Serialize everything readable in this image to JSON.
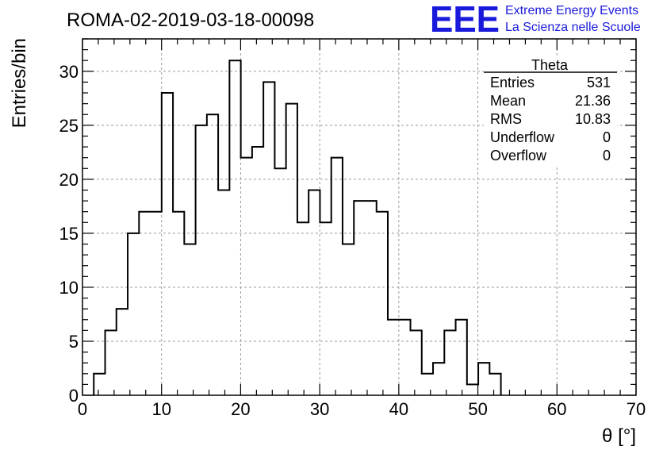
{
  "chart_data": {
    "type": "histogram",
    "title": "ROMA-02-2019-03-18-00098",
    "xlabel": "θ [°]",
    "ylabel": "Entries/bin",
    "xlim": [
      0,
      70
    ],
    "ylim": [
      0,
      33
    ],
    "grid": true,
    "bin_width": 1.43,
    "bin_start": 1.43,
    "values": [
      2,
      6,
      8,
      15,
      17,
      17,
      28,
      17,
      14,
      25,
      26,
      19,
      31,
      22,
      23,
      29,
      21,
      27,
      16,
      19,
      16,
      22,
      14,
      18,
      18,
      17,
      7,
      7,
      6,
      2,
      3,
      6,
      7,
      1,
      3,
      2
    ],
    "x_ticks": [
      0,
      10,
      20,
      30,
      40,
      50,
      60,
      70
    ],
    "y_ticks": [
      0,
      5,
      10,
      15,
      20,
      25,
      30
    ]
  },
  "stats_box": {
    "name": "Theta",
    "rows": [
      {
        "label": "Entries",
        "value": "531"
      },
      {
        "label": "Mean",
        "value": "21.36"
      },
      {
        "label": "RMS",
        "value": "10.83"
      },
      {
        "label": "Underflow",
        "value": "0"
      },
      {
        "label": "Overflow",
        "value": "0"
      }
    ]
  },
  "logo": {
    "mark": "EEE",
    "line1": "Extreme Energy Events",
    "line2": "La Scienza nelle Scuole",
    "color": "#1a1adc"
  }
}
